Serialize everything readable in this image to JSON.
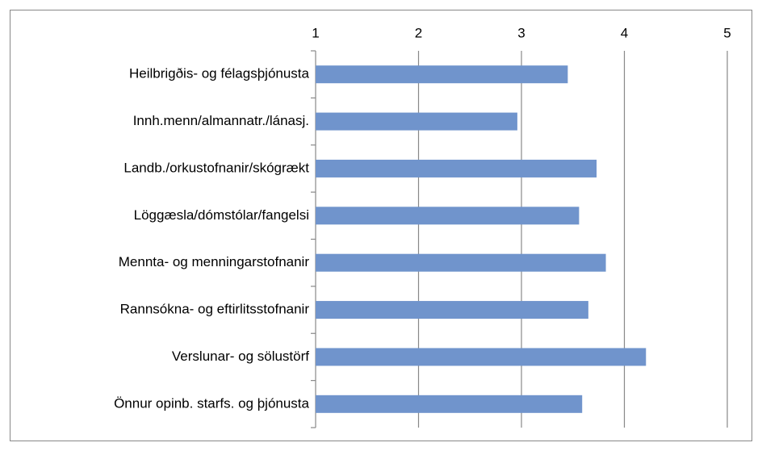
{
  "chart_data": {
    "type": "bar",
    "orientation": "horizontal",
    "categories": [
      "Heilbrigðis- og félagsþjónusta",
      "Innh.menn/almannatr./lánasj.",
      "Landb./orkustofnanir/skógrækt",
      "Löggæsla/dómstólar/fangelsi",
      "Mennta- og menningarstofnanir",
      "Rannsókna- og eftirlitsstofnanir",
      "Verslunar- og sölustörf",
      "Önnur opinb. starfs. og þjónusta"
    ],
    "values": [
      3.45,
      2.96,
      3.73,
      3.56,
      3.82,
      3.65,
      4.21,
      3.59
    ],
    "color": "#7094cc",
    "xlim": [
      1,
      5
    ],
    "xticks": [
      1,
      2,
      3,
      4,
      5
    ],
    "grid": true
  }
}
